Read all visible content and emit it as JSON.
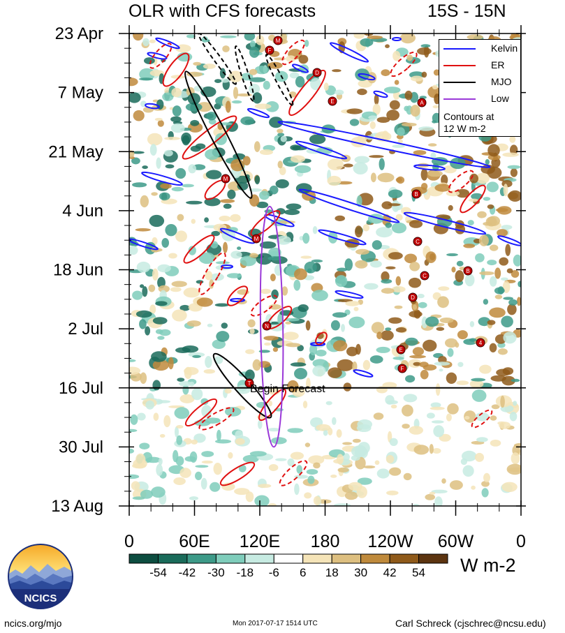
{
  "header": {
    "title": "OLR with CFS forecasts",
    "region": "15S - 15N"
  },
  "legend": {
    "items": [
      {
        "label": "Kelvin",
        "color": "#1a1aff"
      },
      {
        "label": "ER",
        "color": "#e01010"
      },
      {
        "label": "MJO",
        "color": "#000000"
      },
      {
        "label": "Low",
        "color": "#9a38d8"
      }
    ],
    "note_line1": "Contours at",
    "note_line2": "12 W m-2"
  },
  "annotation": {
    "forecast_label": "Begin Forecast"
  },
  "colorbar": {
    "units": "W m-2",
    "ticks": [
      "-54",
      "-42",
      "-30",
      "-18",
      "-6",
      "6",
      "18",
      "30",
      "42",
      "54"
    ],
    "colors": [
      "#0d4d40",
      "#1a6b5a",
      "#3d9a88",
      "#7fcdbb",
      "#c7ebe2",
      "#ffffff",
      "#f5e4b8",
      "#ddbf80",
      "#bf8a3c",
      "#8f5a1a",
      "#5c3410"
    ]
  },
  "footer": {
    "left": "ncics.org/mjo",
    "center": "Mon 2017-07-17 1514 UTC",
    "right": "Carl Schreck (cjschrec@ncsu.edu)",
    "logo_text": "NCICS"
  },
  "chart_data": {
    "type": "heatmap",
    "title": "OLR with CFS forecasts",
    "subtitle": "15S - 15N",
    "x_tick_labels": [
      "0",
      "60E",
      "120E",
      "180",
      "120W",
      "60W",
      "0"
    ],
    "x_lon": [
      0,
      60,
      120,
      180,
      240,
      300,
      360
    ],
    "xlim": [
      0,
      360
    ],
    "y_tick_labels": [
      "23 Apr",
      "7 May",
      "21 May",
      "4 Jun",
      "18 Jun",
      "2 Jul",
      "16 Jul",
      "30 Jul",
      "13 Aug"
    ],
    "y_dates": [
      "2017-04-23",
      "2017-05-07",
      "2017-05-21",
      "2017-06-04",
      "2017-06-18",
      "2017-07-02",
      "2017-07-16",
      "2017-07-30",
      "2017-08-13"
    ],
    "ylim": [
      "2017-04-23",
      "2017-08-13"
    ],
    "forecast_start": "2017-07-16",
    "contour_interval": "12 W m-2",
    "filters": [
      "Kelvin",
      "ER",
      "MJO",
      "Low"
    ],
    "mjo_features": [
      {
        "name": "MJO",
        "lon_start": 52,
        "date_start": "2017-05-02",
        "lon_end": 112,
        "date_end": "2017-06-01"
      },
      {
        "name": "MJO",
        "lon_start": 78,
        "date_start": "2017-07-08",
        "lon_end": 130,
        "date_end": "2017-07-23"
      }
    ],
    "low_feature": {
      "name": "Low",
      "lon_center": 131,
      "date_start": "2017-06-03",
      "date_end": "2017-07-30"
    },
    "cyclone_markers": [
      "M",
      "F",
      "D",
      "E",
      "A",
      "M",
      "B",
      "M",
      "C",
      "C",
      "B",
      "D",
      "N",
      "E",
      "4",
      "F",
      "T"
    ]
  }
}
